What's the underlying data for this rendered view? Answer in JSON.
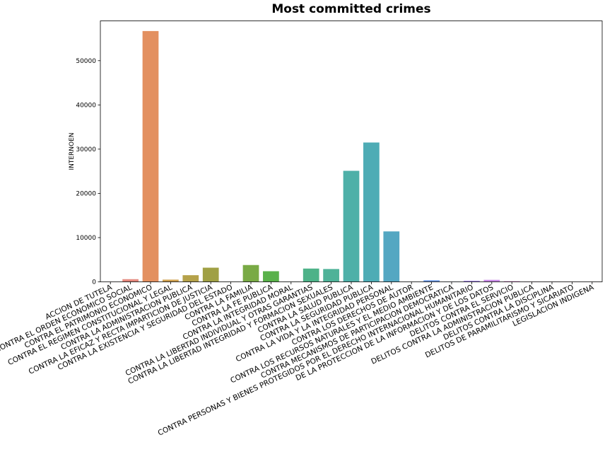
{
  "chart_data": {
    "type": "bar",
    "title": "Most committed crimes",
    "xlabel": "",
    "ylabel": "INTERNOEN",
    "ylim": [
      0,
      59000
    ],
    "yticks": [
      0,
      10000,
      20000,
      30000,
      40000,
      50000
    ],
    "grid": false,
    "categories": [
      "ACCION DE TUTELA",
      "CONTRA EL ORDEN ECONOMICO SOCIAL",
      "CONTRA EL PATRIMONIO ECONOMICO",
      "CONTRA EL REGIMEN CONSTITUCIONAL Y LEGAL",
      "CONTRA LA ADMINISTRACION PUBLICA",
      "CONTRA LA EFICAZ Y RECTA IMPARTICION DE JUSTICIA",
      "CONTRA LA EXISTENCIA Y SEGURIDAD DEL ESTADO",
      "CONTRA LA FAMILIA",
      "CONTRA LA FE PUBLICA",
      "CONTRA LA INTEGRIDAD MORAL",
      "CONTRA LA LIBERTAD INDIVIDUAL Y OTRAS GARANTIAS",
      "CONTRA LA LIBERTAD INTEGRIDAD Y FORMACION SEXUALES",
      "CONTRA LA SALUD PUBLICA",
      "CONTRA LA SEGURIDAD PUBLICA",
      "CONTRA LA VIDA Y LA INTEGRIDAD PERSONAL",
      "CONTRA LOS DERECHOS DE AUTOR",
      "CONTRA LOS RECURSOS NATURALES Y EL MEDIO AMBIENTE",
      "CONTRA MECANISMOS DE PARTICIPACION DEMOCRATICA",
      "CONTRA PERSONAS Y BIENES PROTEGIDOS POR EL DERECHO INTERNACIONAL HUMANITARIO",
      "DE LA PROTECCION DE LA INFORMACION Y DE LOS DATOS",
      "DELITOS CONTRA EL SERVICIO",
      "DELITOS CONTRA LA ADMINISTRACION PUBLICA",
      "DELITOS CONTRA LA DISCIPLINA",
      "DELITOS DE PARAMILITARISMO Y SICARIATO",
      "LEGISLACION INDIGENA"
    ],
    "values": [
      5,
      600,
      56700,
      500,
      1500,
      3200,
      20,
      3800,
      2400,
      30,
      3000,
      2900,
      25100,
      31500,
      11400,
      10,
      350,
      30,
      250,
      450,
      150,
      30,
      20,
      15,
      10
    ],
    "colors": [
      "#ea96a3",
      "#e5897e",
      "#e39060",
      "#cfa04f",
      "#b5a24a",
      "#a0a044",
      "#8ba43f",
      "#79aa45",
      "#59b14a",
      "#4cb36e",
      "#4db288",
      "#4fb298",
      "#4eb0a8",
      "#4eacb5",
      "#54a7c2",
      "#5b9fd4",
      "#6796e2",
      "#8a8ce8",
      "#a589eb",
      "#c88ae6",
      "#de87d3",
      "#e889c0",
      "#ee8bad",
      "#f18b9a",
      "#f38c8e"
    ]
  }
}
